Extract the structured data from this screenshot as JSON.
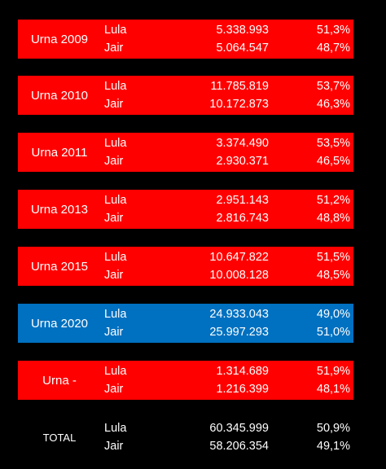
{
  "blocks": [
    {
      "urna": "Urna 2009",
      "color": "#ff0000",
      "rows": [
        {
          "candidate": "Lula",
          "votes": "5.338.993",
          "pct": "51,3%"
        },
        {
          "candidate": "Jair",
          "votes": "5.064.547",
          "pct": "48,7%"
        }
      ]
    },
    {
      "urna": "Urna 2010",
      "color": "#ff0000",
      "rows": [
        {
          "candidate": "Lula",
          "votes": "11.785.819",
          "pct": "53,7%"
        },
        {
          "candidate": "Jair",
          "votes": "10.172.873",
          "pct": "46,3%"
        }
      ]
    },
    {
      "urna": "Urna 2011",
      "color": "#ff0000",
      "rows": [
        {
          "candidate": "Lula",
          "votes": "3.374.490",
          "pct": "53,5%"
        },
        {
          "candidate": "Jair",
          "votes": "2.930.371",
          "pct": "46,5%"
        }
      ]
    },
    {
      "urna": "Urna 2013",
      "color": "#ff0000",
      "rows": [
        {
          "candidate": "Lula",
          "votes": "2.951.143",
          "pct": "51,2%"
        },
        {
          "candidate": "Jair",
          "votes": "2.816.743",
          "pct": "48,8%"
        }
      ]
    },
    {
      "urna": "Urna 2015",
      "color": "#ff0000",
      "rows": [
        {
          "candidate": "Lula",
          "votes": "10.647.822",
          "pct": "51,5%"
        },
        {
          "candidate": "Jair",
          "votes": "10.008.128",
          "pct": "48,5%"
        }
      ]
    },
    {
      "urna": "Urna 2020",
      "color": "#0070c0",
      "rows": [
        {
          "candidate": "Lula",
          "votes": "24.933.043",
          "pct": "49,0%"
        },
        {
          "candidate": "Jair",
          "votes": "25.997.293",
          "pct": "51,0%"
        }
      ]
    },
    {
      "urna": "Urna -",
      "color": "#ff0000",
      "rows": [
        {
          "candidate": "Lula",
          "votes": "1.314.689",
          "pct": "51,9%"
        },
        {
          "candidate": "Jair",
          "votes": "1.216.399",
          "pct": "48,1%"
        }
      ]
    }
  ],
  "total": {
    "label": "TOTAL",
    "rows": [
      {
        "candidate": "Lula",
        "votes": "60.345.999",
        "pct": "50,9%"
      },
      {
        "candidate": "Jair",
        "votes": "58.206.354",
        "pct": "49,1%"
      }
    ]
  }
}
